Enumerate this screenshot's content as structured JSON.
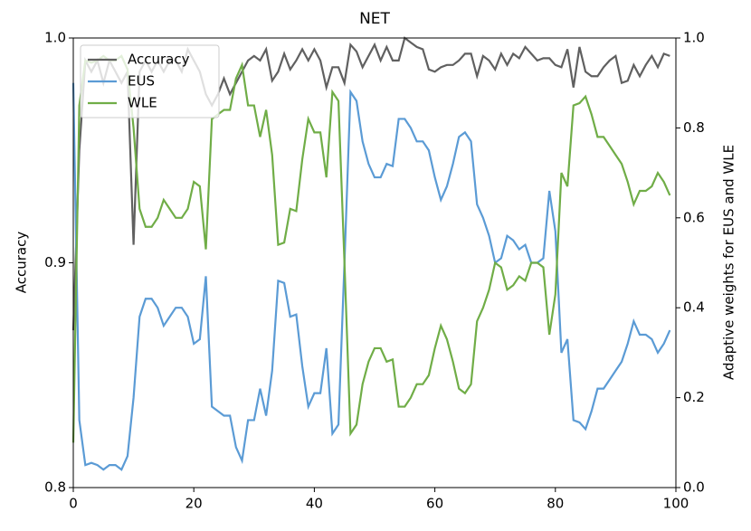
{
  "chart_data": {
    "type": "line",
    "title": "NET",
    "ylabel": "Accuracy",
    "y2label": "Adaptive weights for EUS and WLE",
    "x": [
      0,
      1,
      2,
      3,
      4,
      5,
      6,
      7,
      8,
      9,
      10,
      11,
      12,
      13,
      14,
      15,
      16,
      17,
      18,
      19,
      20,
      21,
      22,
      23,
      24,
      25,
      26,
      27,
      28,
      29,
      30,
      31,
      32,
      33,
      34,
      35,
      36,
      37,
      38,
      39,
      40,
      41,
      42,
      43,
      44,
      45,
      46,
      47,
      48,
      49,
      50,
      51,
      52,
      53,
      54,
      55,
      56,
      57,
      58,
      59,
      60,
      61,
      62,
      63,
      64,
      65,
      66,
      67,
      68,
      69,
      70,
      71,
      72,
      73,
      74,
      75,
      76,
      77,
      78,
      79,
      80,
      81,
      82,
      83,
      84,
      85,
      86,
      87,
      88,
      89,
      90,
      91,
      92,
      93,
      94,
      95,
      96,
      97,
      98,
      99
    ],
    "xlim": [
      0,
      100
    ],
    "xticks": [
      0,
      20,
      40,
      60,
      80,
      100
    ],
    "ylim": [
      0.8,
      1.0
    ],
    "yticks": [
      0.8,
      0.9,
      {
        "value": 1,
        "label": "1.0"
      }
    ],
    "y2lim": [
      0,
      1
    ],
    "y2ticks": [
      {
        "value": 0,
        "label": "0.0"
      },
      0.2,
      0.4,
      0.6,
      0.8,
      {
        "value": 1,
        "label": "1.0"
      }
    ],
    "legend": "upper left",
    "series": [
      {
        "name": "Accuracy",
        "color": "#606060",
        "values": [
          0.87,
          0.95,
          0.99,
          0.985,
          0.99,
          0.98,
          0.99,
          0.985,
          0.98,
          0.985,
          0.908,
          0.985,
          0.99,
          0.985,
          0.99,
          0.985,
          0.99,
          0.99,
          0.985,
          0.995,
          0.99,
          0.985,
          0.975,
          0.97,
          0.975,
          0.982,
          0.975,
          0.98,
          0.985,
          0.99,
          0.992,
          0.99,
          0.995,
          0.981,
          0.985,
          0.993,
          0.986,
          0.99,
          0.995,
          0.99,
          0.995,
          0.99,
          0.978,
          0.987,
          0.987,
          0.98,
          0.997,
          0.994,
          0.987,
          0.992,
          0.997,
          0.99,
          0.996,
          0.99,
          0.99,
          1.0,
          0.998,
          0.996,
          0.995,
          0.986,
          0.985,
          0.987,
          0.988,
          0.988,
          0.99,
          0.993,
          0.993,
          0.983,
          0.992,
          0.99,
          0.986,
          0.993,
          0.988,
          0.993,
          0.991,
          0.996,
          0.993,
          0.99,
          0.991,
          0.991,
          0.988,
          0.987,
          0.995,
          0.978,
          0.996,
          0.985,
          0.983,
          0.983,
          0.987,
          0.99,
          0.992,
          0.98,
          0.981,
          0.988,
          0.983,
          0.988,
          0.992,
          0.987,
          0.993,
          0.992
        ]
      },
      {
        "name": "EUS",
        "color": "#5b9bd5",
        "axis": "y2",
        "values": [
          0.9,
          0.15,
          0.05,
          0.055,
          0.05,
          0.04,
          0.05,
          0.05,
          0.04,
          0.07,
          0.2,
          0.38,
          0.42,
          0.42,
          0.4,
          0.36,
          0.38,
          0.4,
          0.4,
          0.38,
          0.32,
          0.33,
          0.47,
          0.18,
          0.17,
          0.16,
          0.16,
          0.09,
          0.06,
          0.15,
          0.15,
          0.22,
          0.16,
          0.26,
          0.46,
          0.455,
          0.38,
          0.385,
          0.27,
          0.18,
          0.21,
          0.21,
          0.31,
          0.12,
          0.14,
          0.5,
          0.88,
          0.86,
          0.77,
          0.72,
          0.69,
          0.69,
          0.72,
          0.715,
          0.82,
          0.82,
          0.8,
          0.77,
          0.77,
          0.75,
          0.69,
          0.64,
          0.67,
          0.72,
          0.78,
          0.79,
          0.77,
          0.63,
          0.6,
          0.56,
          0.5,
          0.51,
          0.56,
          0.55,
          0.53,
          0.54,
          0.5,
          0.5,
          0.51,
          0.66,
          0.57,
          0.3,
          0.33,
          0.15,
          0.145,
          0.13,
          0.17,
          0.22,
          0.22,
          0.24,
          0.26,
          0.28,
          0.32,
          0.37,
          0.34,
          0.34,
          0.33,
          0.3,
          0.32,
          0.35
        ]
      },
      {
        "name": "WLE",
        "color": "#70ad47",
        "axis": "y2",
        "values": [
          0.1,
          0.85,
          0.95,
          0.945,
          0.95,
          0.96,
          0.95,
          0.95,
          0.96,
          0.93,
          0.8,
          0.62,
          0.58,
          0.58,
          0.6,
          0.64,
          0.62,
          0.6,
          0.6,
          0.62,
          0.68,
          0.67,
          0.53,
          0.82,
          0.83,
          0.84,
          0.84,
          0.91,
          0.94,
          0.85,
          0.85,
          0.78,
          0.84,
          0.74,
          0.54,
          0.545,
          0.62,
          0.615,
          0.73,
          0.82,
          0.79,
          0.79,
          0.69,
          0.88,
          0.86,
          0.5,
          0.12,
          0.14,
          0.23,
          0.28,
          0.31,
          0.31,
          0.28,
          0.285,
          0.18,
          0.18,
          0.2,
          0.23,
          0.23,
          0.25,
          0.31,
          0.36,
          0.33,
          0.28,
          0.22,
          0.21,
          0.23,
          0.37,
          0.4,
          0.44,
          0.5,
          0.49,
          0.44,
          0.45,
          0.47,
          0.46,
          0.5,
          0.5,
          0.49,
          0.34,
          0.43,
          0.7,
          0.67,
          0.85,
          0.855,
          0.87,
          0.83,
          0.78,
          0.78,
          0.76,
          0.74,
          0.72,
          0.68,
          0.63,
          0.66,
          0.66,
          0.67,
          0.7,
          0.68,
          0.65
        ]
      }
    ]
  }
}
